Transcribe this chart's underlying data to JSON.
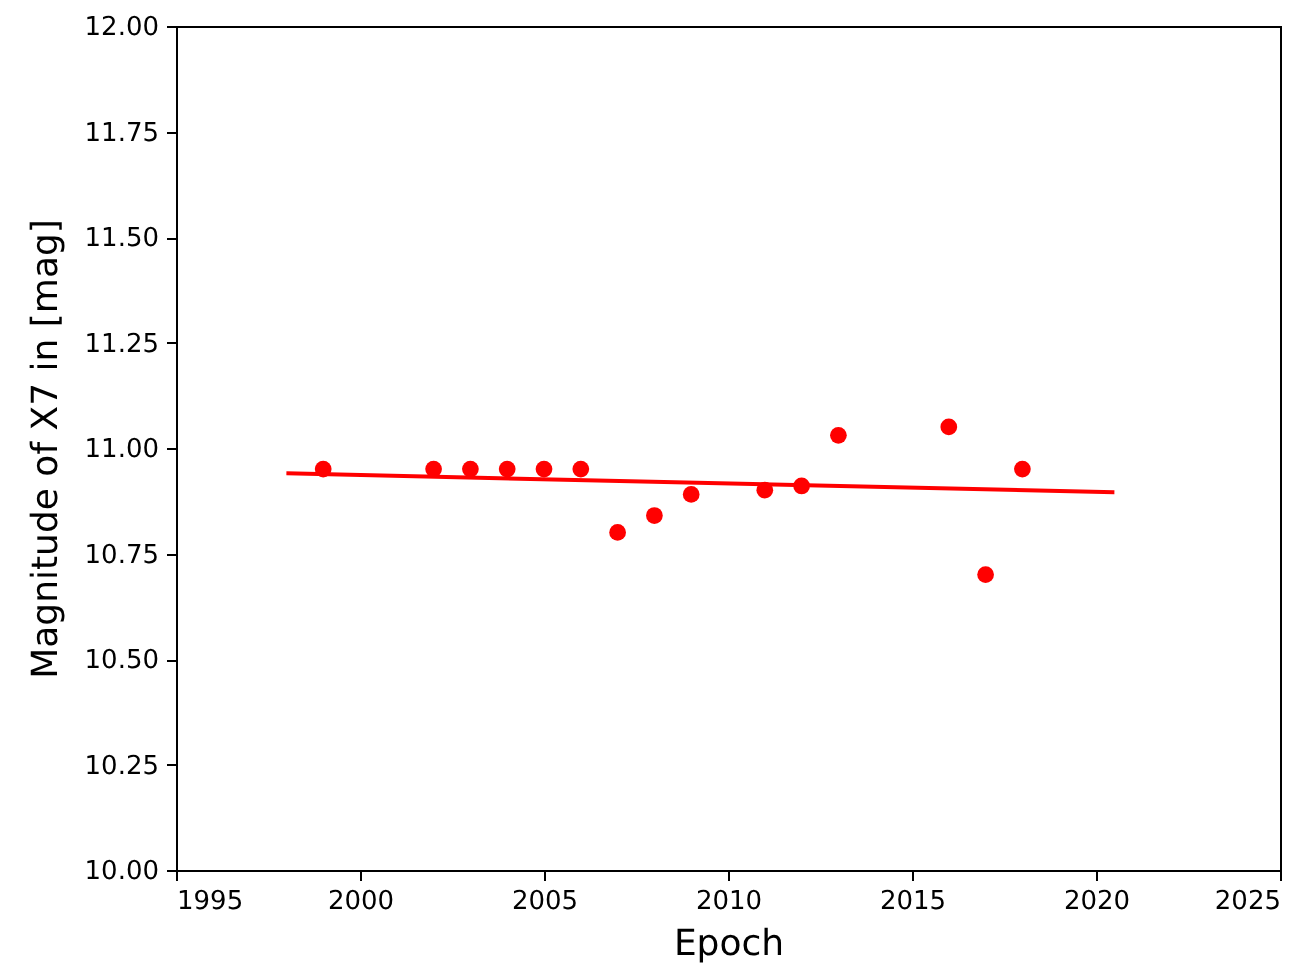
{
  "chart_data": {
    "type": "scatter",
    "xlabel": "Epoch",
    "ylabel": "Magnitude of X7 in [mag]",
    "xlim": [
      1995,
      2025
    ],
    "xticks": [
      1995,
      2000,
      2005,
      2010,
      2015,
      2020,
      2025
    ],
    "ylim": [
      10,
      12
    ],
    "yticks": [
      {
        "value": 10,
        "label": "10.00"
      },
      {
        "value": 10.25,
        "label": "10.25"
      },
      {
        "value": 10.5,
        "label": "10.50"
      },
      {
        "value": 10.75,
        "label": "10.75"
      },
      {
        "value": 11,
        "label": "11.00"
      },
      {
        "value": 11.25,
        "label": "11.25"
      },
      {
        "value": 11.5,
        "label": "11.50"
      },
      {
        "value": 11.75,
        "label": "11.75"
      },
      {
        "value": 12,
        "label": "12.00"
      }
    ],
    "grid": false,
    "series": [
      {
        "color": "#ff0000",
        "marker": "circle",
        "x": [
          1999,
          2002,
          2003,
          2004,
          2005,
          2006,
          2007,
          2008,
          2009,
          2011,
          2012,
          2013,
          2016,
          2017,
          2018
        ],
        "values": [
          10.95,
          10.95,
          10.95,
          10.95,
          10.95,
          10.95,
          10.8,
          10.84,
          10.89,
          10.9,
          10.91,
          11.03,
          11.05,
          10.7,
          10.95
        ]
      },
      {
        "type": "line",
        "marker": "none",
        "color": "#ff0000",
        "x": [
          1998,
          2020.5
        ],
        "values": [
          10.94,
          10.895
        ]
      }
    ]
  }
}
